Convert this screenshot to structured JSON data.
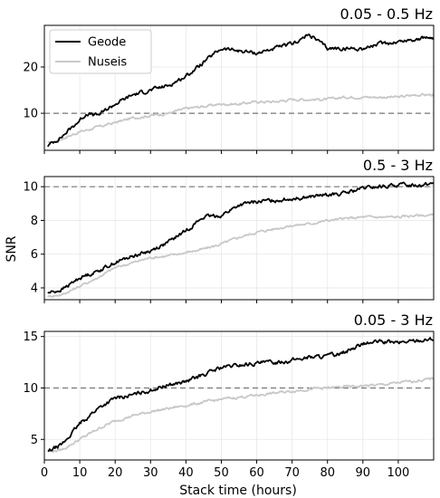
{
  "figure": {
    "ylabel": "SNR",
    "xlabel": "Stack time (hours)",
    "legend": {
      "placement": "top-left",
      "panel": 0,
      "entries": [
        {
          "name": "Geode",
          "color": "#000000"
        },
        {
          "name": "Nuseis",
          "color": "#c8c8c8"
        }
      ]
    },
    "colors": {
      "geode": "#000000",
      "nuseis": "#c8c8c8",
      "reference": "#777777",
      "grid": "#e8e8e8"
    }
  },
  "chart_data": [
    {
      "type": "line",
      "title": "0.05 - 0.5 Hz",
      "xlim": [
        0,
        110
      ],
      "ylim": [
        2,
        29
      ],
      "xticks": [
        0,
        10,
        20,
        30,
        40,
        50,
        60,
        70,
        80,
        90,
        100
      ],
      "yticks": [
        10,
        20
      ],
      "grid": true,
      "reference_line": 10,
      "series": [
        {
          "name": "Geode",
          "points": [
            [
              1,
              3
            ],
            [
              5,
              5
            ],
            [
              10,
              8.5
            ],
            [
              12,
              10
            ],
            [
              15,
              9.5
            ],
            [
              20,
              12
            ],
            [
              25,
              14
            ],
            [
              30,
              15
            ],
            [
              35,
              16
            ],
            [
              40,
              18
            ],
            [
              45,
              21
            ],
            [
              50,
              24
            ],
            [
              55,
              23.5
            ],
            [
              60,
              23
            ],
            [
              65,
              24
            ],
            [
              70,
              25
            ],
            [
              75,
              27
            ],
            [
              80,
              24
            ],
            [
              85,
              24
            ],
            [
              90,
              24
            ],
            [
              95,
              25
            ],
            [
              100,
              25.5
            ],
            [
              105,
              26
            ],
            [
              110,
              26.5
            ]
          ]
        },
        {
          "name": "Nuseis",
          "points": [
            [
              1,
              3.5
            ],
            [
              5,
              4.5
            ],
            [
              10,
              6
            ],
            [
              15,
              7
            ],
            [
              20,
              8
            ],
            [
              25,
              9
            ],
            [
              30,
              9.5
            ],
            [
              35,
              10
            ],
            [
              40,
              11
            ],
            [
              45,
              11.5
            ],
            [
              50,
              12
            ],
            [
              55,
              12
            ],
            [
              60,
              12.5
            ],
            [
              65,
              12.5
            ],
            [
              70,
              13
            ],
            [
              75,
              13
            ],
            [
              80,
              13
            ],
            [
              85,
              13.5
            ],
            [
              90,
              13.5
            ],
            [
              95,
              13.5
            ],
            [
              100,
              13.5
            ],
            [
              105,
              14
            ],
            [
              110,
              14
            ]
          ]
        }
      ]
    },
    {
      "type": "line",
      "title": "0.5 - 3 Hz",
      "xlim": [
        0,
        110
      ],
      "ylim": [
        3.3,
        10.6
      ],
      "xticks": [
        0,
        10,
        20,
        30,
        40,
        50,
        60,
        70,
        80,
        90,
        100
      ],
      "yticks": [
        4,
        6,
        8,
        10
      ],
      "grid": true,
      "reference_line": 10,
      "series": [
        {
          "name": "Geode",
          "points": [
            [
              1,
              3.7
            ],
            [
              5,
              3.9
            ],
            [
              10,
              4.6
            ],
            [
              15,
              5.0
            ],
            [
              20,
              5.5
            ],
            [
              25,
              5.9
            ],
            [
              30,
              6.2
            ],
            [
              35,
              6.7
            ],
            [
              40,
              7.4
            ],
            [
              45,
              8.2
            ],
            [
              50,
              8.3
            ],
            [
              55,
              8.9
            ],
            [
              60,
              9.1
            ],
            [
              65,
              9.2
            ],
            [
              70,
              9.3
            ],
            [
              75,
              9.4
            ],
            [
              80,
              9.5
            ],
            [
              85,
              9.6
            ],
            [
              90,
              9.9
            ],
            [
              95,
              10.0
            ],
            [
              100,
              10.1
            ],
            [
              105,
              10.1
            ],
            [
              110,
              10.2
            ]
          ]
        },
        {
          "name": "Nuseis",
          "points": [
            [
              1,
              3.5
            ],
            [
              5,
              3.6
            ],
            [
              10,
              4.1
            ],
            [
              15,
              4.6
            ],
            [
              20,
              5.2
            ],
            [
              25,
              5.5
            ],
            [
              30,
              5.8
            ],
            [
              35,
              5.9
            ],
            [
              40,
              6.1
            ],
            [
              45,
              6.3
            ],
            [
              50,
              6.6
            ],
            [
              55,
              7.0
            ],
            [
              60,
              7.3
            ],
            [
              65,
              7.5
            ],
            [
              70,
              7.7
            ],
            [
              75,
              7.8
            ],
            [
              80,
              8.0
            ],
            [
              85,
              8.1
            ],
            [
              90,
              8.2
            ],
            [
              95,
              8.2
            ],
            [
              100,
              8.2
            ],
            [
              105,
              8.3
            ],
            [
              110,
              8.3
            ]
          ]
        }
      ]
    },
    {
      "type": "line",
      "title": "0.05 - 3 Hz",
      "xlim": [
        0,
        110
      ],
      "ylim": [
        3,
        15.5
      ],
      "xticks": [
        0,
        10,
        20,
        30,
        40,
        50,
        60,
        70,
        80,
        90,
        100
      ],
      "yticks": [
        5,
        10,
        15
      ],
      "grid": true,
      "reference_line": 10,
      "series": [
        {
          "name": "Geode",
          "points": [
            [
              1,
              3.8
            ],
            [
              5,
              4.5
            ],
            [
              10,
              6.5
            ],
            [
              15,
              8
            ],
            [
              20,
              9
            ],
            [
              25,
              9.3
            ],
            [
              30,
              9.8
            ],
            [
              35,
              10.3
            ],
            [
              40,
              10.6
            ],
            [
              45,
              11.3
            ],
            [
              50,
              12
            ],
            [
              55,
              12.2
            ],
            [
              60,
              12.4
            ],
            [
              65,
              12.5
            ],
            [
              70,
              12.7
            ],
            [
              75,
              13
            ],
            [
              80,
              13.1
            ],
            [
              85,
              13.5
            ],
            [
              90,
              14.3
            ],
            [
              95,
              14.5
            ],
            [
              100,
              14.4
            ],
            [
              105,
              14.6
            ],
            [
              110,
              14.8
            ]
          ]
        },
        {
          "name": "Nuseis",
          "points": [
            [
              1,
              3.8
            ],
            [
              5,
              4
            ],
            [
              10,
              5
            ],
            [
              15,
              6
            ],
            [
              20,
              6.8
            ],
            [
              25,
              7.3
            ],
            [
              30,
              7.7
            ],
            [
              35,
              8
            ],
            [
              40,
              8.3
            ],
            [
              45,
              8.6
            ],
            [
              50,
              8.9
            ],
            [
              55,
              9.1
            ],
            [
              60,
              9.3
            ],
            [
              65,
              9.5
            ],
            [
              70,
              9.7
            ],
            [
              75,
              9.9
            ],
            [
              80,
              10
            ],
            [
              85,
              10.1
            ],
            [
              90,
              10.2
            ],
            [
              95,
              10.3
            ],
            [
              100,
              10.5
            ],
            [
              105,
              10.7
            ],
            [
              110,
              10.9
            ]
          ]
        }
      ]
    }
  ]
}
